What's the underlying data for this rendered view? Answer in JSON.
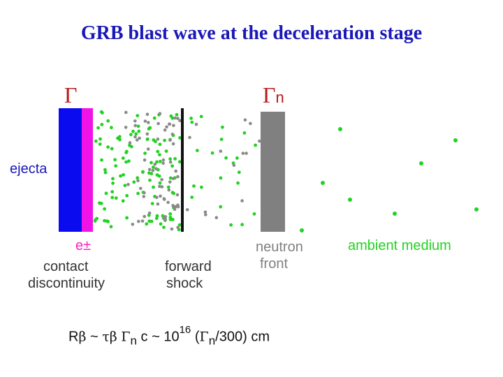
{
  "title": "GRB blast wave at the deceleration stage",
  "symbols": {
    "gamma": "Γ",
    "gamma_n": "Γ",
    "gamma_n_sub": "n"
  },
  "labels": {
    "ejecta": "ejecta",
    "electron": "e±",
    "contact_line1": "contact",
    "contact_line2": "discontinuity",
    "forward_line1": "forward",
    "forward_line2": "shock",
    "neutron_line1": "neutron",
    "neutron_line2": "front",
    "ambient": "ambient medium"
  },
  "formula": {
    "r": "R",
    "beta": "β",
    "tilde1": "~",
    "tau": "τ",
    "beta2": "β",
    "gamma": "Γ",
    "n": "n",
    "c": "c",
    "tilde2": "~",
    "ten": "10",
    "exp": "16",
    "paren_open": "(",
    "gamma2": "Γ",
    "n2": "n",
    "rest": "/300) cm"
  },
  "colors": {
    "ejecta": "#0b0bf0",
    "electron_layer": "#f012e6",
    "shock_line": "#111111",
    "neutron_front": "#808080",
    "green_dot": "#22d222",
    "gray_dot": "#8a8a8a"
  }
}
